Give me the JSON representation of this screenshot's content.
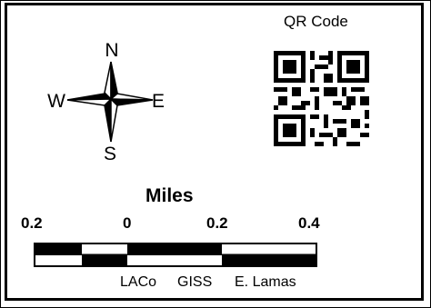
{
  "north_arrow": {
    "north_label": "N",
    "south_label": "S",
    "east_label": "E",
    "west_label": "W",
    "icon": "compass-rose-icon"
  },
  "qr": {
    "title": "QR Code",
    "icon": "qr-code-icon"
  },
  "scale_bar": {
    "units_label": "Miles",
    "ticks": [
      "0.2",
      "0",
      "0.2",
      "0.4"
    ]
  },
  "credits": {
    "agency": "LACo",
    "department": "GISS",
    "author": "E. Lamas"
  },
  "colors": {
    "ink": "#000000",
    "paper": "#ffffff"
  }
}
